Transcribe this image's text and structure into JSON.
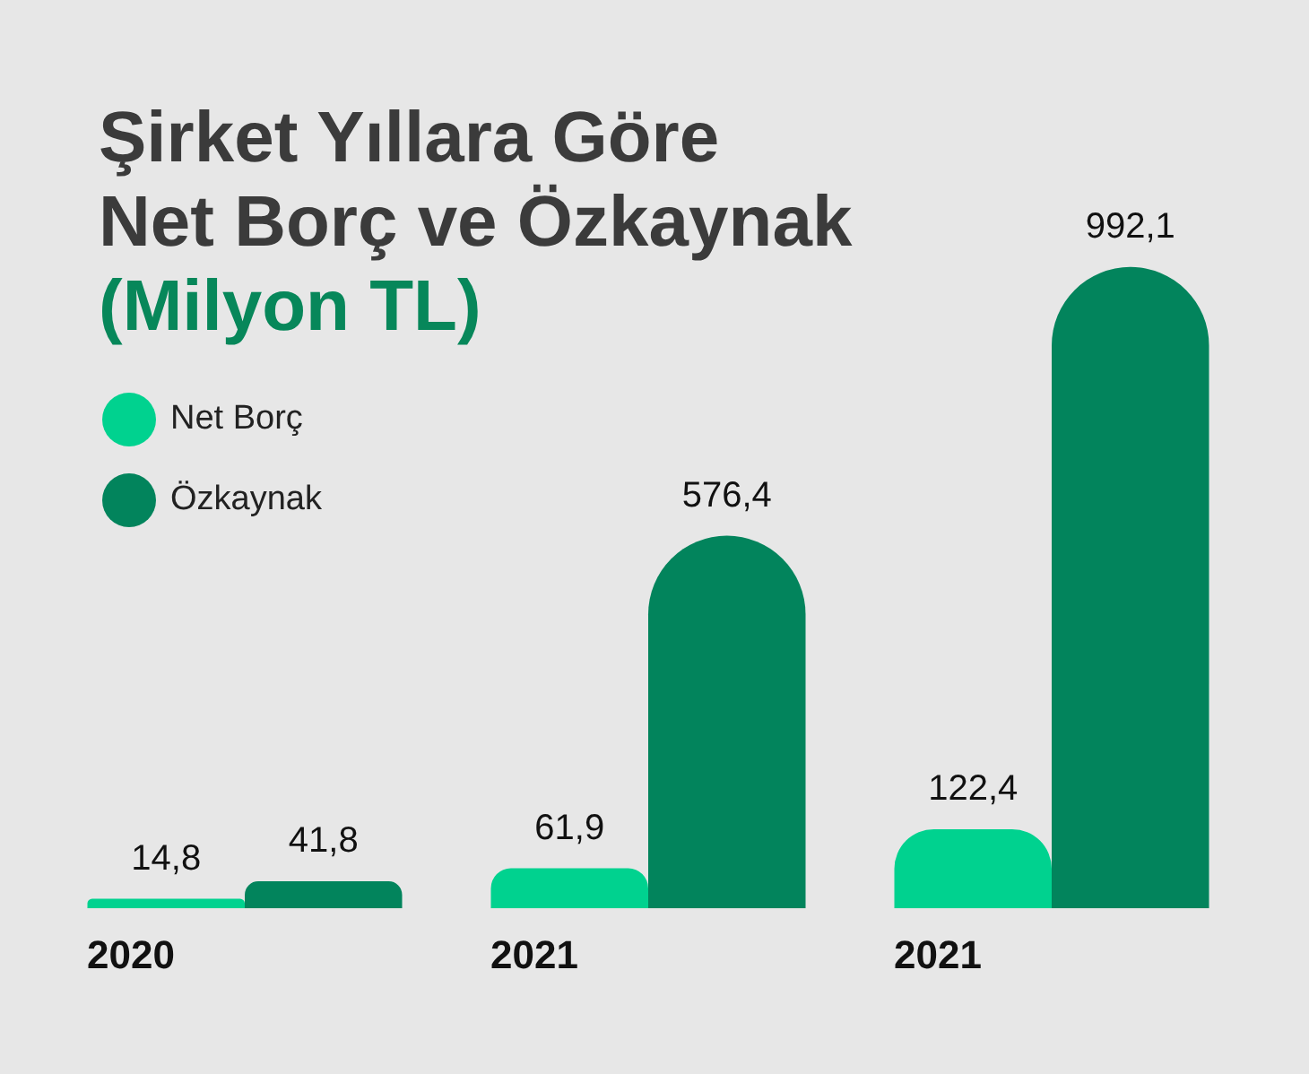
{
  "chart_data": {
    "type": "bar",
    "title": "Şirket Yıllara Göre\nNet Borç ve Özkaynak",
    "subtitle": "(Milyon TL)",
    "categories": [
      "2020",
      "2021",
      "2021"
    ],
    "series": [
      {
        "name": "Net Borç",
        "color": "#00d28f",
        "values": [
          14.8,
          61.9,
          122.4
        ],
        "value_labels": [
          "14,8",
          "61,9",
          "122,4"
        ]
      },
      {
        "name": "Özkaynak",
        "color": "#02845c",
        "values": [
          41.8,
          576.4,
          992.1
        ],
        "value_labels": [
          "41,8",
          "576,4",
          "992,1"
        ]
      }
    ],
    "legend": "top left",
    "grid": false,
    "tick_labels": "x"
  }
}
